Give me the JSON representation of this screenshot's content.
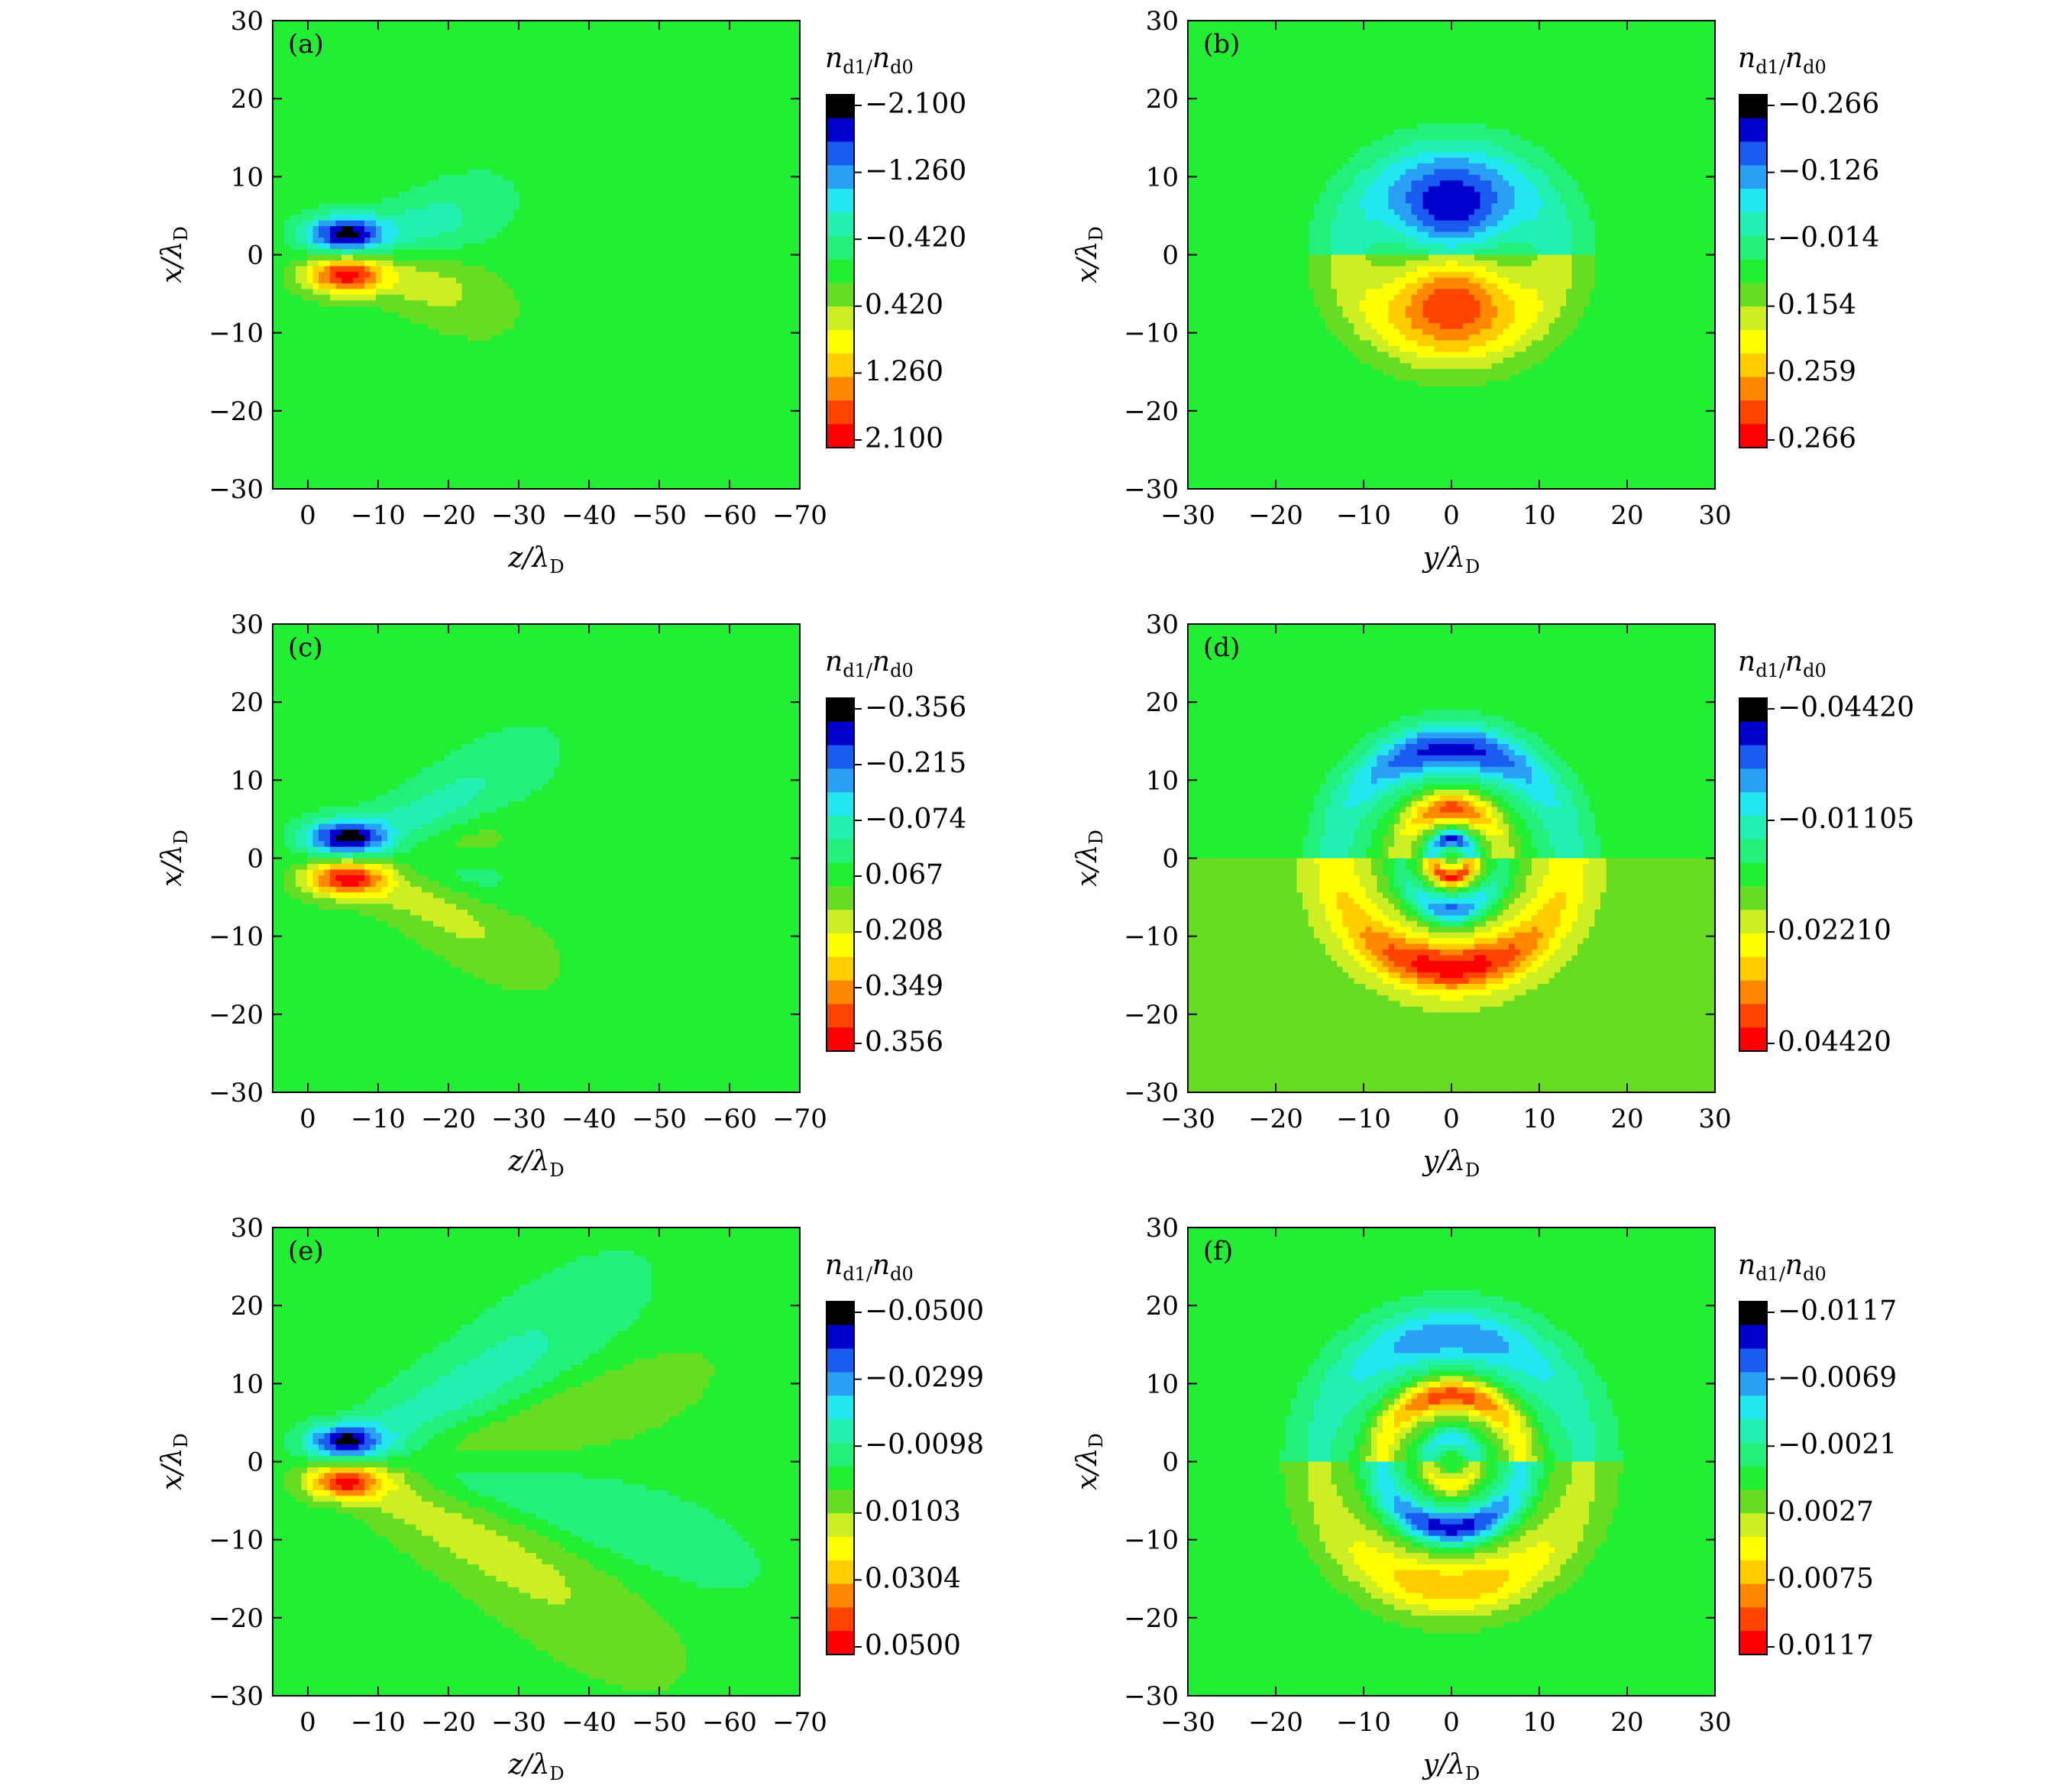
{
  "figure": {
    "colors": {
      "background": "#22ee33",
      "contour": "#000000",
      "neg_dark": "#000000",
      "pos_peak": "#ff0000"
    },
    "colorscale": [
      "#000000",
      "#0000cc",
      "#1a5cf0",
      "#2aa0f5",
      "#22e6f0",
      "#22f0b0",
      "#22f07a",
      "#22ee33",
      "#66dd22",
      "#ccee22",
      "#ffff00",
      "#ffcc00",
      "#ff8800",
      "#ff4400",
      "#ff0000"
    ]
  },
  "chart_data": [
    {
      "type": "heatmap",
      "panel": "(a)",
      "xlabel": "z/λ",
      "xlabel_sub": "D",
      "ylabel": "x/λ",
      "ylabel_sub": "D",
      "xlim": [
        5,
        -70
      ],
      "ylim": [
        -30,
        30
      ],
      "xticks": [
        0,
        -10,
        -20,
        -30,
        -40,
        -50,
        -60,
        -70
      ],
      "xtick_labels": [
        "0",
        "−10",
        "−20",
        "−30",
        "−40",
        "−50",
        "−60",
        "−70"
      ],
      "yticks": [
        30,
        20,
        10,
        0,
        -10,
        -20,
        -30
      ],
      "ytick_labels": [
        "30",
        "20",
        "10",
        "0",
        "−10",
        "−20",
        "−30"
      ],
      "colorbar_title": "n",
      "colorbar_title_sub": "d1/",
      "colorbar_title2": "n",
      "colorbar_title2_sub": "d0",
      "colorbar_labels": [
        "−2.100",
        "−1.260",
        "−0.420",
        "0.420",
        "1.260",
        "2.100"
      ],
      "colorbar_range": [
        -2.1,
        2.1
      ],
      "background_level": 0
    },
    {
      "type": "heatmap",
      "panel": "(b)",
      "xlabel": "y/λ",
      "xlabel_sub": "D",
      "ylabel": "x/λ",
      "ylabel_sub": "D",
      "xlim": [
        -30,
        30
      ],
      "ylim": [
        -30,
        30
      ],
      "xticks": [
        -30,
        -20,
        -10,
        0,
        10,
        20,
        30
      ],
      "xtick_labels": [
        "−30",
        "−20",
        "−10",
        "0",
        "10",
        "20",
        "30"
      ],
      "yticks": [
        30,
        20,
        10,
        0,
        -10,
        -20,
        -30
      ],
      "ytick_labels": [
        "30",
        "20",
        "10",
        "0",
        "−10",
        "−20",
        "−30"
      ],
      "colorbar_title": "n",
      "colorbar_title_sub": "d1/",
      "colorbar_title2": "n",
      "colorbar_title2_sub": "d0",
      "colorbar_labels": [
        "−0.266",
        "−0.126",
        "−0.014",
        "0.154",
        "0.259",
        "0.266"
      ],
      "colorbar_range": [
        -0.266,
        0.266
      ],
      "background_level": 0
    },
    {
      "type": "heatmap",
      "panel": "(c)",
      "xlabel": "z/λ",
      "xlabel_sub": "D",
      "ylabel": "x/λ",
      "ylabel_sub": "D",
      "xlim": [
        5,
        -70
      ],
      "ylim": [
        -30,
        30
      ],
      "xticks": [
        0,
        -10,
        -20,
        -30,
        -40,
        -50,
        -60,
        -70
      ],
      "xtick_labels": [
        "0",
        "−10",
        "−20",
        "−30",
        "−40",
        "−50",
        "−60",
        "−70"
      ],
      "yticks": [
        30,
        20,
        10,
        0,
        -10,
        -20,
        -30
      ],
      "ytick_labels": [
        "30",
        "20",
        "10",
        "0",
        "−10",
        "−20",
        "−30"
      ],
      "colorbar_title": "n",
      "colorbar_title_sub": "d1/",
      "colorbar_title2": "n",
      "colorbar_title2_sub": "d0",
      "colorbar_labels": [
        "−0.356",
        "−0.215",
        "−0.074",
        "0.067",
        "0.208",
        "0.349",
        "0.356"
      ],
      "colorbar_range": [
        -0.356,
        0.356
      ],
      "background_level": 0
    },
    {
      "type": "heatmap",
      "panel": "(d)",
      "xlabel": "y/λ",
      "xlabel_sub": "D",
      "ylabel": "x/λ",
      "ylabel_sub": "D",
      "xlim": [
        -30,
        30
      ],
      "ylim": [
        -30,
        30
      ],
      "xticks": [
        -30,
        -20,
        -10,
        0,
        10,
        20,
        30
      ],
      "xtick_labels": [
        "−30",
        "−20",
        "−10",
        "0",
        "10",
        "20",
        "30"
      ],
      "yticks": [
        30,
        20,
        10,
        0,
        -10,
        -20,
        -30
      ],
      "ytick_labels": [
        "30",
        "20",
        "10",
        "0",
        "−10",
        "−20",
        "−30"
      ],
      "colorbar_title": "n",
      "colorbar_title_sub": "d1/",
      "colorbar_title2": "n",
      "colorbar_title2_sub": "d0",
      "colorbar_labels": [
        "−0.04420",
        "−0.01105",
        "0.02210",
        "0.04420"
      ],
      "colorbar_range": [
        -0.0442,
        0.0442
      ],
      "background_level": 0
    },
    {
      "type": "heatmap",
      "panel": "(e)",
      "xlabel": "z/λ",
      "xlabel_sub": "D",
      "ylabel": "x/λ",
      "ylabel_sub": "D",
      "xlim": [
        5,
        -70
      ],
      "ylim": [
        -30,
        30
      ],
      "xticks": [
        0,
        -10,
        -20,
        -30,
        -40,
        -50,
        -60,
        -70
      ],
      "xtick_labels": [
        "0",
        "−10",
        "−20",
        "−30",
        "−40",
        "−50",
        "−60",
        "−70"
      ],
      "yticks": [
        30,
        20,
        10,
        0,
        -10,
        -20,
        -30
      ],
      "ytick_labels": [
        "30",
        "20",
        "10",
        "0",
        "−10",
        "−20",
        "−30"
      ],
      "colorbar_title": "n",
      "colorbar_title_sub": "d1/",
      "colorbar_title2": "n",
      "colorbar_title2_sub": "d0",
      "colorbar_labels": [
        "−0.0500",
        "−0.0299",
        "−0.0098",
        "0.0103",
        "0.0304",
        "0.0500"
      ],
      "colorbar_range": [
        -0.05,
        0.05
      ],
      "background_level": 0
    },
    {
      "type": "heatmap",
      "panel": "(f)",
      "xlabel": "y/λ",
      "xlabel_sub": "D",
      "ylabel": "x/λ",
      "ylabel_sub": "D",
      "xlim": [
        -30,
        30
      ],
      "ylim": [
        -30,
        30
      ],
      "xticks": [
        -30,
        -20,
        -10,
        0,
        10,
        20,
        30
      ],
      "xtick_labels": [
        "−30",
        "−20",
        "−10",
        "0",
        "10",
        "20",
        "30"
      ],
      "yticks": [
        30,
        20,
        10,
        0,
        -10,
        -20,
        -30
      ],
      "ytick_labels": [
        "30",
        "20",
        "10",
        "0",
        "−10",
        "−20",
        "−30"
      ],
      "colorbar_title": "n",
      "colorbar_title_sub": "d1/",
      "colorbar_title2": "n",
      "colorbar_title2_sub": "d0",
      "colorbar_labels": [
        "−0.0117",
        "−0.0069",
        "−0.0021",
        "0.0027",
        "0.0075",
        "0.0117"
      ],
      "colorbar_range": [
        -0.0117,
        0.0117
      ],
      "background_level": 0
    }
  ]
}
